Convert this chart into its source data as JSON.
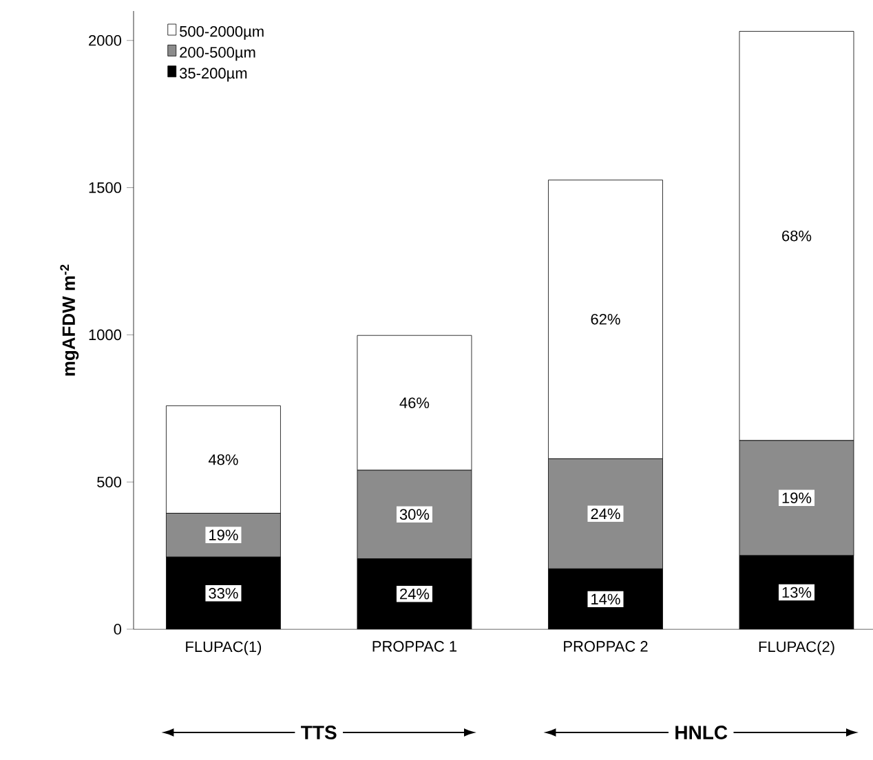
{
  "chart_data": {
    "type": "bar",
    "stacked": true,
    "ylabel": "mgAFDW m$^{-2}$",
    "categories": [
      "FLUPAC(1)",
      "PROPPAC 1",
      "PROPPAC 2",
      "FLUPAC(2)"
    ],
    "series": [
      {
        "name": "35-200µm",
        "color": "#000000",
        "values": [
          245,
          239,
          205,
          250
        ]
      },
      {
        "name": "200-500µm",
        "color": "#8c8c8c",
        "values": [
          149,
          301,
          374,
          391
        ]
      },
      {
        "name": "500-2000µm",
        "color": "#ffffff",
        "values": [
          365,
          458,
          947,
          1390
        ]
      }
    ],
    "ylim": [
      0,
      2100
    ],
    "yticks": [
      0,
      500,
      1000,
      1500,
      2000
    ],
    "legend": "top left",
    "grid": false,
    "annotations": [
      {
        "text": "33%",
        "x": "FLUPAC(1)",
        "y": 122
      },
      {
        "text": "24%",
        "x": "PROPPAC 1",
        "y": 120
      },
      {
        "text": "14%",
        "x": "PROPPAC 2",
        "y": 102
      },
      {
        "text": "13%",
        "x": "FLUPAC(2)",
        "y": 125
      },
      {
        "text": "19%",
        "x": "FLUPAC(1)",
        "y": 320
      },
      {
        "text": "30%",
        "x": "PROPPAC 1",
        "y": 390
      },
      {
        "text": "24%",
        "x": "PROPPAC 2",
        "y": 392
      },
      {
        "text": "19%",
        "x": "FLUPAC(2)",
        "y": 446
      },
      {
        "text": "48%",
        "x": "FLUPAC(1)",
        "y": 576
      },
      {
        "text": "46%",
        "x": "PROPPAC 1",
        "y": 769
      },
      {
        "text": "62%",
        "x": "PROPPAC 2",
        "y": 1053
      },
      {
        "text": "68%",
        "x": "FLUPAC(2)",
        "y": 1336
      },
      "TTS",
      "HNLC"
    ]
  }
}
